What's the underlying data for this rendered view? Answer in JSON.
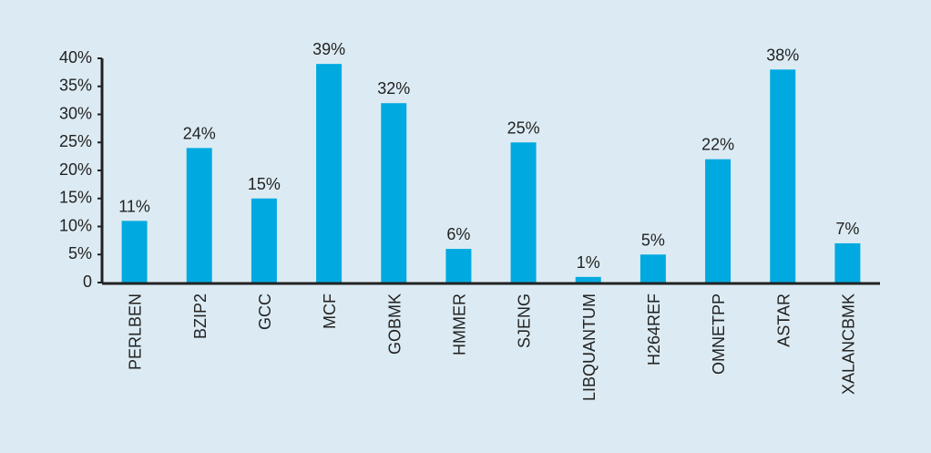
{
  "chart_data": {
    "type": "bar",
    "categories": [
      "PERLBEN",
      "BZIP2",
      "GCC",
      "MCF",
      "GOBMK",
      "HMMER",
      "SJENG",
      "LIBQUANTUM",
      "H264REF",
      "OMNETPP",
      "ASTAR",
      "XALANCBMK"
    ],
    "values": [
      11,
      24,
      15,
      39,
      32,
      6,
      25,
      1,
      5,
      22,
      38,
      7
    ],
    "value_labels": [
      "11%",
      "24%",
      "15%",
      "39%",
      "32%",
      "6%",
      "25%",
      "1%",
      "5%",
      "22%",
      "38%",
      "7%"
    ],
    "color": "#00a9e0",
    "ylim": [
      0,
      40
    ],
    "yticks": [
      0,
      {
        "value": 5,
        "label": "5%"
      },
      {
        "value": 10,
        "label": "10%"
      },
      {
        "value": 15,
        "label": "15%"
      },
      {
        "value": 20,
        "label": "20%"
      },
      {
        "value": 25,
        "label": "25%"
      },
      {
        "value": 30,
        "label": "30%"
      },
      {
        "value": 35,
        "label": "35%"
      },
      {
        "value": 40,
        "label": "40%"
      }
    ]
  }
}
